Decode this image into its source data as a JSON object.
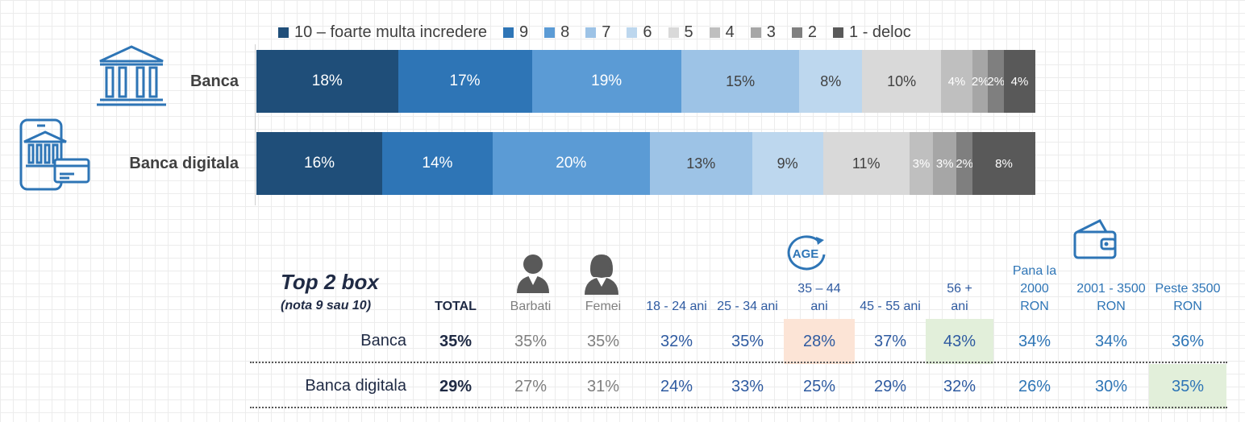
{
  "chart_data": {
    "type": "bar",
    "orientation": "horizontal",
    "stacked": "100%",
    "categories": [
      "Banca",
      "Banca digitala"
    ],
    "series": [
      {
        "name": "10 – foarte multa incredere",
        "color": "#1f4e79",
        "values": [
          18,
          16
        ],
        "labels": [
          "18%",
          "16%"
        ]
      },
      {
        "name": "9",
        "color": "#2e75b6",
        "values": [
          17,
          14
        ],
        "labels": [
          "17%",
          "14%"
        ]
      },
      {
        "name": "8",
        "color": "#5b9bd5",
        "values": [
          19,
          20
        ],
        "labels": [
          "19%",
          "20%"
        ]
      },
      {
        "name": "7",
        "color": "#9dc3e6",
        "values": [
          15,
          13
        ],
        "labels": [
          "15%",
          "13%"
        ]
      },
      {
        "name": "6",
        "color": "#bdd7ee",
        "values": [
          8,
          9
        ],
        "labels": [
          "8%",
          "9%"
        ]
      },
      {
        "name": "5",
        "color": "#d9d9d9",
        "values": [
          10,
          11
        ],
        "labels": [
          "10%",
          "11%"
        ]
      },
      {
        "name": "4",
        "color": "#bfbfbf",
        "values": [
          4,
          3
        ],
        "labels": [
          "4%",
          "3%"
        ]
      },
      {
        "name": "3",
        "color": "#a6a6a6",
        "values": [
          2,
          3
        ],
        "labels": [
          "2%",
          "3%"
        ]
      },
      {
        "name": "2",
        "color": "#7f7f7f",
        "values": [
          2,
          2
        ],
        "labels": [
          "2%",
          "2%"
        ]
      },
      {
        "name": "1 - deloc",
        "color": "#595959",
        "values": [
          4,
          8
        ],
        "labels": [
          "4%",
          "8%"
        ]
      }
    ],
    "legend": "top"
  },
  "table": {
    "title": "Top 2 box",
    "subtitle": "(nota 9 sau 10)",
    "columns": [
      {
        "label": "TOTAL",
        "bold": true,
        "color": "#1f2a44"
      },
      {
        "label": "Barbati",
        "icon": "man-icon",
        "color": "#7f7f7f"
      },
      {
        "label": "Femei",
        "icon": "woman-icon",
        "color": "#7f7f7f"
      },
      {
        "label": "18 - 24 ani",
        "color": "#2e5aa0"
      },
      {
        "label": "25 - 34 ani",
        "color": "#2e5aa0"
      },
      {
        "label": "35 – 44\nani",
        "icon": "age-icon",
        "color": "#2e5aa0"
      },
      {
        "label": "45 - 55 ani",
        "color": "#2e5aa0"
      },
      {
        "label": "56 +\nani",
        "color": "#2e5aa0"
      },
      {
        "label": "Pana la\n2000\nRON",
        "color": "#2e75b6"
      },
      {
        "label": "2001 - 3500\nRON",
        "icon": "wallet-icon",
        "color": "#2e75b6"
      },
      {
        "label": "Peste 3500\nRON",
        "color": "#2e75b6"
      }
    ],
    "rows": [
      {
        "label": "Banca",
        "values": [
          "35%",
          "35%",
          "35%",
          "32%",
          "35%",
          "28%",
          "37%",
          "43%",
          "34%",
          "34%",
          "36%"
        ],
        "highlights": [
          null,
          null,
          null,
          null,
          null,
          "#fce4d6",
          null,
          "#e2efda",
          null,
          null,
          null
        ]
      },
      {
        "label": "Banca digitala",
        "values": [
          "29%",
          "27%",
          "31%",
          "24%",
          "33%",
          "25%",
          "29%",
          "32%",
          "26%",
          "30%",
          "35%"
        ],
        "highlights": [
          null,
          null,
          null,
          null,
          null,
          null,
          null,
          null,
          null,
          null,
          "#e2efda"
        ]
      }
    ]
  },
  "icons": {
    "bank": "bank-icon",
    "digital_bank": "mobile-bank-card-icon"
  }
}
